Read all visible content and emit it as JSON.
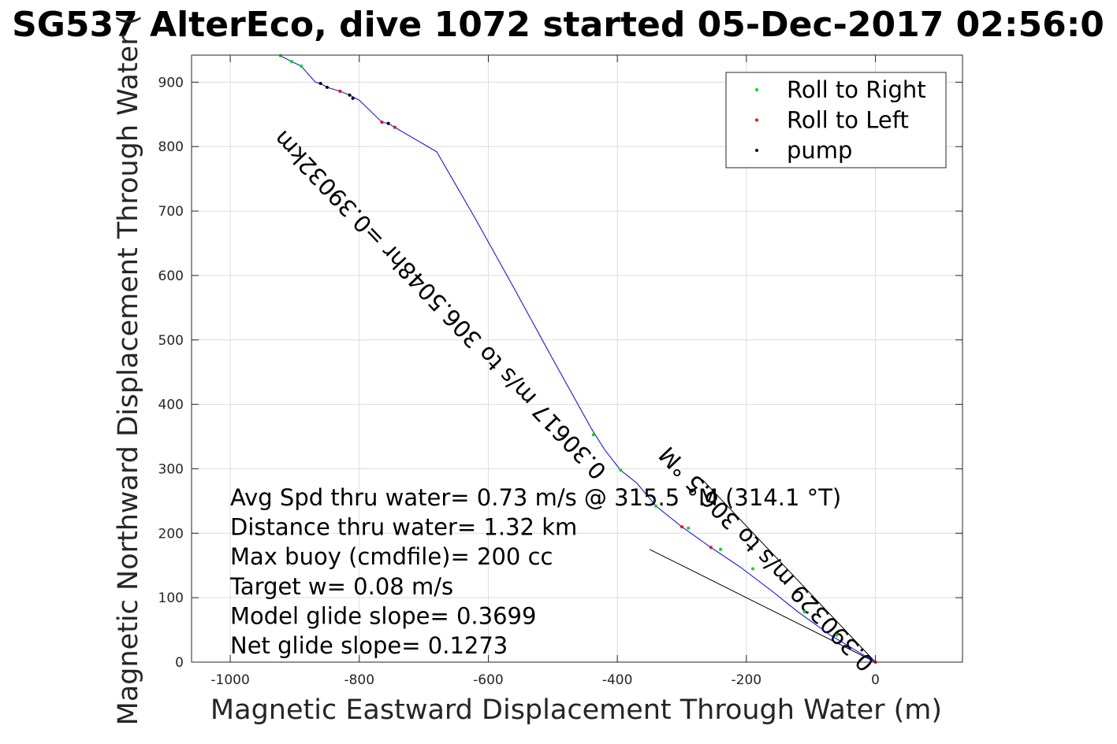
{
  "chart_data": {
    "type": "line",
    "title": "SG537 AlterEco, dive 1072 started 05-Dec-2017 02:56:0",
    "xlabel": "Magnetic Eastward Displacement Through Water (m)",
    "ylabel": "Magnetic Northward Displacement Through Water (",
    "xlim": [
      -1060,
      135
    ],
    "ylim": [
      0,
      942
    ],
    "grid": true,
    "x_ticks": [
      -1000,
      -800,
      -600,
      -400,
      -200,
      0
    ],
    "y_ticks": [
      0,
      100,
      200,
      300,
      400,
      500,
      600,
      700,
      800,
      900
    ],
    "x_tick_labels": [
      "-1000",
      "-800",
      "-600",
      "-400",
      "-200",
      "0"
    ],
    "y_tick_labels": [
      "0",
      "100",
      "200",
      "300",
      "400",
      "500",
      "600",
      "700",
      "800",
      "900"
    ],
    "legend": {
      "position": "top-right",
      "entries": [
        {
          "label": "Roll to Right",
          "color": "#00dd00"
        },
        {
          "label": "Roll to Left",
          "color": "#ff0000"
        },
        {
          "label": "pump",
          "color": "#000000"
        }
      ]
    },
    "track": {
      "color": "#0000ff",
      "x": [
        0,
        -70,
        -120,
        -160,
        -210,
        -255,
        -300,
        -340,
        -370,
        -395,
        -420,
        -440,
        -500,
        -560,
        -620,
        -680,
        -745,
        -755,
        -765,
        -800,
        -815,
        -830,
        -850,
        -860,
        -868,
        -890,
        -905,
        -922
      ],
      "y": [
        0,
        42,
        78,
        110,
        148,
        178,
        210,
        242,
        278,
        298,
        330,
        362,
        470,
        580,
        688,
        792,
        830,
        836,
        838,
        872,
        880,
        886,
        892,
        898,
        900,
        925,
        932,
        941
      ]
    },
    "roll_right": {
      "x": [
        -922,
        -905,
        -890,
        -815,
        -755,
        -437,
        -395,
        -340,
        -290,
        -240,
        -190,
        -110,
        -60
      ],
      "y": [
        941,
        932,
        925,
        880,
        836,
        353,
        298,
        242,
        208,
        175,
        145,
        78,
        42
      ]
    },
    "roll_left": {
      "x": [
        -830,
        -765,
        -745,
        -300,
        -255,
        0
      ],
      "y": [
        886,
        838,
        830,
        210,
        178,
        0
      ]
    },
    "pump": {
      "x": [
        -860,
        -850,
        -815,
        -810,
        -755
      ],
      "y": [
        898,
        892,
        880,
        875,
        836
      ]
    },
    "cone_lines": [
      {
        "x": [
          0,
          -268
        ],
        "y": [
          0,
          283
        ]
      },
      {
        "x": [
          0,
          -350
        ],
        "y": [
          0,
          175
        ]
      }
    ],
    "rotated_labels": [
      {
        "text": "0.390329 m/s to 306.5 °M",
        "x": 0,
        "y": 0,
        "angle": 46.5
      },
      {
        "text": "0.30617 m/s to 306.5048hr =0.39032km",
        "x": -415,
        "y": 298,
        "angle": 46.5
      }
    ],
    "annotations": [
      "Avg Spd thru water=  0.73 m/s @ 315.5 °M (314.1 °T)",
      "Distance thru water=  1.32 km",
      "Max buoy (cmdfile)= 200 cc",
      "Target w= 0.08 m/s",
      "Model glide slope= 0.3699",
      "Net glide slope= 0.1273"
    ]
  }
}
